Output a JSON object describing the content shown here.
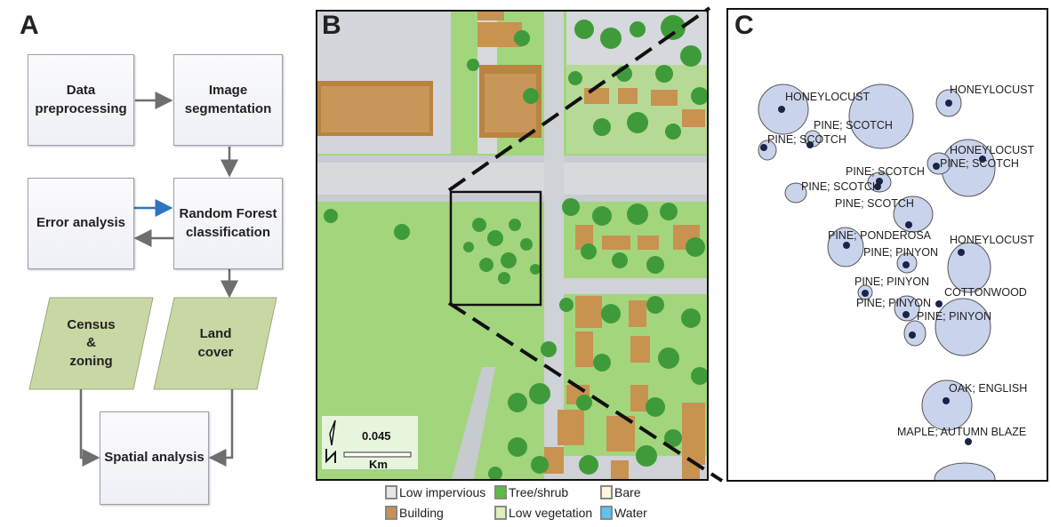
{
  "panels": {
    "a": "A",
    "b": "B",
    "c": "C"
  },
  "flowchart": {
    "data_preprocessing": "Data\npreprocessing",
    "image_segmentation": "Image\nsegmentation",
    "error_analysis": "Error analysis",
    "random_forest": "Random Forest\nclassification",
    "census_zoning": "Census\n&\nzoning",
    "land_cover": "Land\ncover",
    "spatial_analysis": "Spatial analysis"
  },
  "scale_bar": {
    "value": "0.045",
    "unit": "Km"
  },
  "legend": [
    {
      "label": "Low impervious",
      "color": "#e4e6ea"
    },
    {
      "label": "Tree/shrub",
      "color": "#5cb848"
    },
    {
      "label": "Bare",
      "color": "#fdf6dc"
    },
    {
      "label": "Building",
      "color": "#c89250"
    },
    {
      "label": "Low vegetation",
      "color": "#ddefb8"
    },
    {
      "label": "Water",
      "color": "#62c1ec"
    }
  ],
  "trees": [
    {
      "label": "HONEYLOCUST"
    },
    {
      "label": "HONEYLOCUST"
    },
    {
      "label": "PINE; SCOTCH"
    },
    {
      "label": "PINE; SCOTCH"
    },
    {
      "label": "HONEYLOCUST"
    },
    {
      "label": "PINE; SCOTCH"
    },
    {
      "label": "PINE; SCOTCH"
    },
    {
      "label": "PINE; SCOTCH"
    },
    {
      "label": "PINE; SCOTCH"
    },
    {
      "label": "PINE; PONDEROSA"
    },
    {
      "label": "HONEYLOCUST"
    },
    {
      "label": "PINE; PINYON"
    },
    {
      "label": "PINE; PINYON"
    },
    {
      "label": "COTTONWOOD"
    },
    {
      "label": "PINE; PINYON"
    },
    {
      "label": "PINE; PINYON"
    },
    {
      "label": "OAK; ENGLISH"
    },
    {
      "label": "MAPLE; AUTUMN BLAZE"
    }
  ]
}
